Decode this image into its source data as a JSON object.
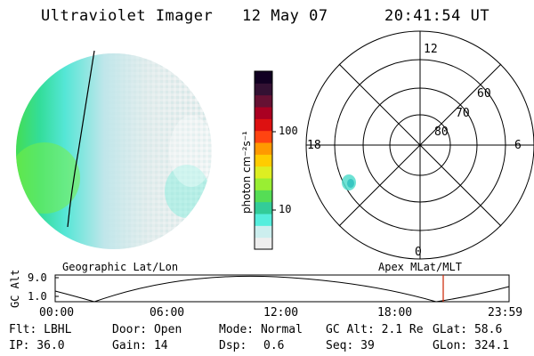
{
  "header": {
    "instrument": "Ultraviolet Imager",
    "date": "12 May 07",
    "time": "20:41:54 UT"
  },
  "colorbar": {
    "unit_label": "photon cm⁻²s⁻¹",
    "ticks": [
      "100",
      "10"
    ],
    "scale": "log",
    "colors": [
      "#eeeeee",
      "#cceeee",
      "#55eedd",
      "#33cc99",
      "#55dd55",
      "#99ee33",
      "#ddee22",
      "#ffcc00",
      "#ff9900",
      "#ff4411",
      "#dd1111",
      "#aa0022",
      "#661133",
      "#331133",
      "#110022"
    ]
  },
  "polar_plot": {
    "mlt_labels": {
      "top": "12",
      "left": "18",
      "right": "6",
      "bottom": "0"
    },
    "lat_labels": [
      "60",
      "70",
      "80"
    ]
  },
  "panel_labels": {
    "geographic": "Geographic Lat/Lon",
    "apex": "Apex MLat/MLT"
  },
  "altitude_plot": {
    "ylabel": "GC Alt",
    "yticks": [
      "9.0",
      "1.0"
    ],
    "xticks": [
      "00:00",
      "06:00",
      "12:00",
      "18:00",
      "23:59"
    ],
    "marker_color": "#cc2200"
  },
  "footer": {
    "flt": "Flt: LBHL",
    "ip": "IP: 36.0",
    "door": "Door: Open",
    "gain": "Gain: 14",
    "mode": "Mode: Normal",
    "dsp_label": "Dsp:",
    "dsp_value": "0.6",
    "gc_alt": "GC Alt: 2.1 Re",
    "seq": "Seq: 39",
    "glat": "GLat:  58.6",
    "glon": "GLon: 324.1"
  }
}
